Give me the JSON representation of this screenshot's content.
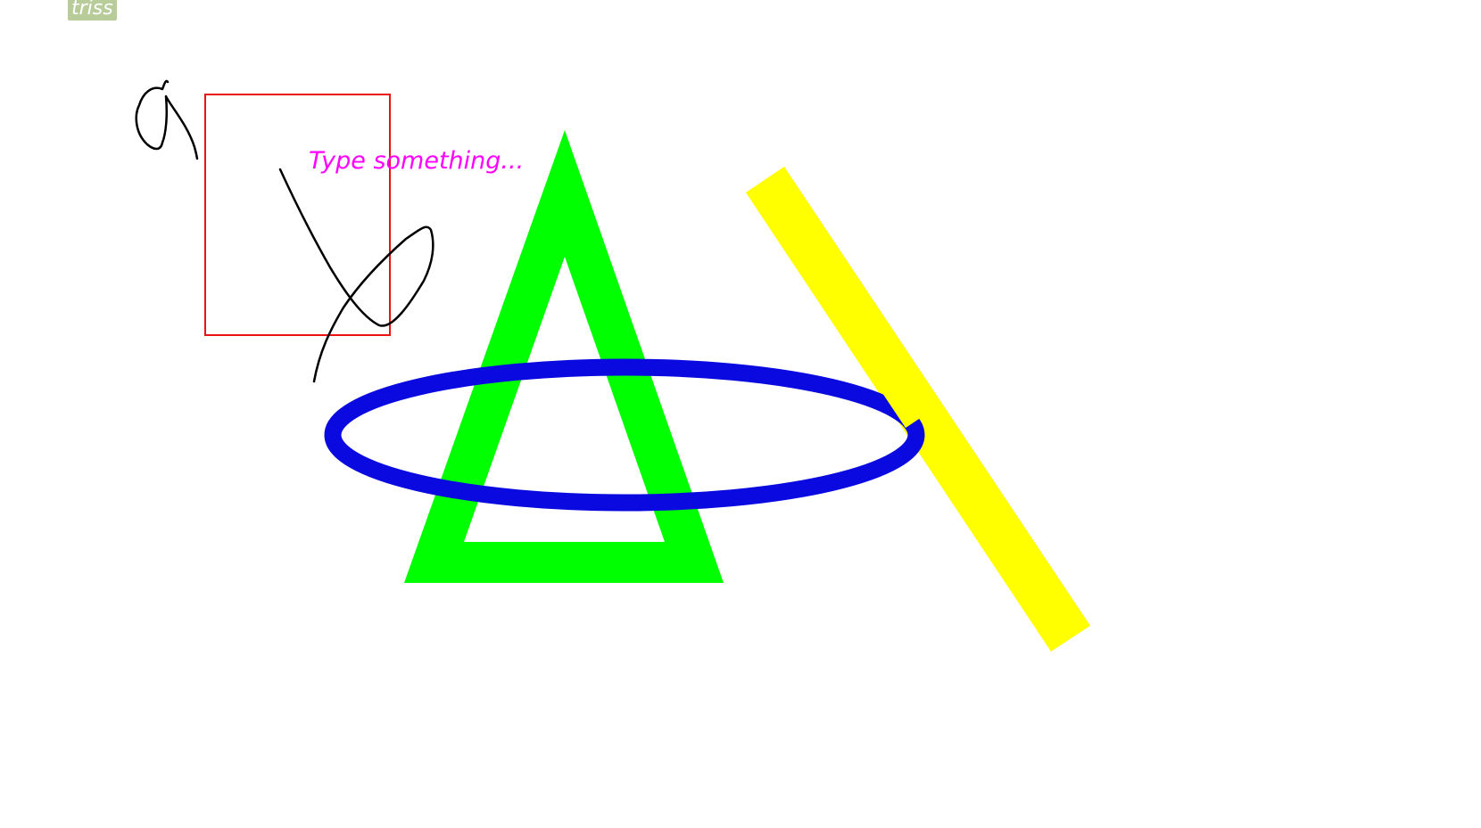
{
  "collaborator": {
    "name": "triss",
    "tag_color": "#b8cc99"
  },
  "text_box": {
    "placeholder": "Type something...",
    "color": "#ff00ff"
  },
  "shapes": {
    "freehand_color": "#000000",
    "rectangle_color": "#ee1111",
    "triangle_color": "#00ff00",
    "ellipse_color": "#0a0ae0",
    "line_color": "#ffff00"
  }
}
